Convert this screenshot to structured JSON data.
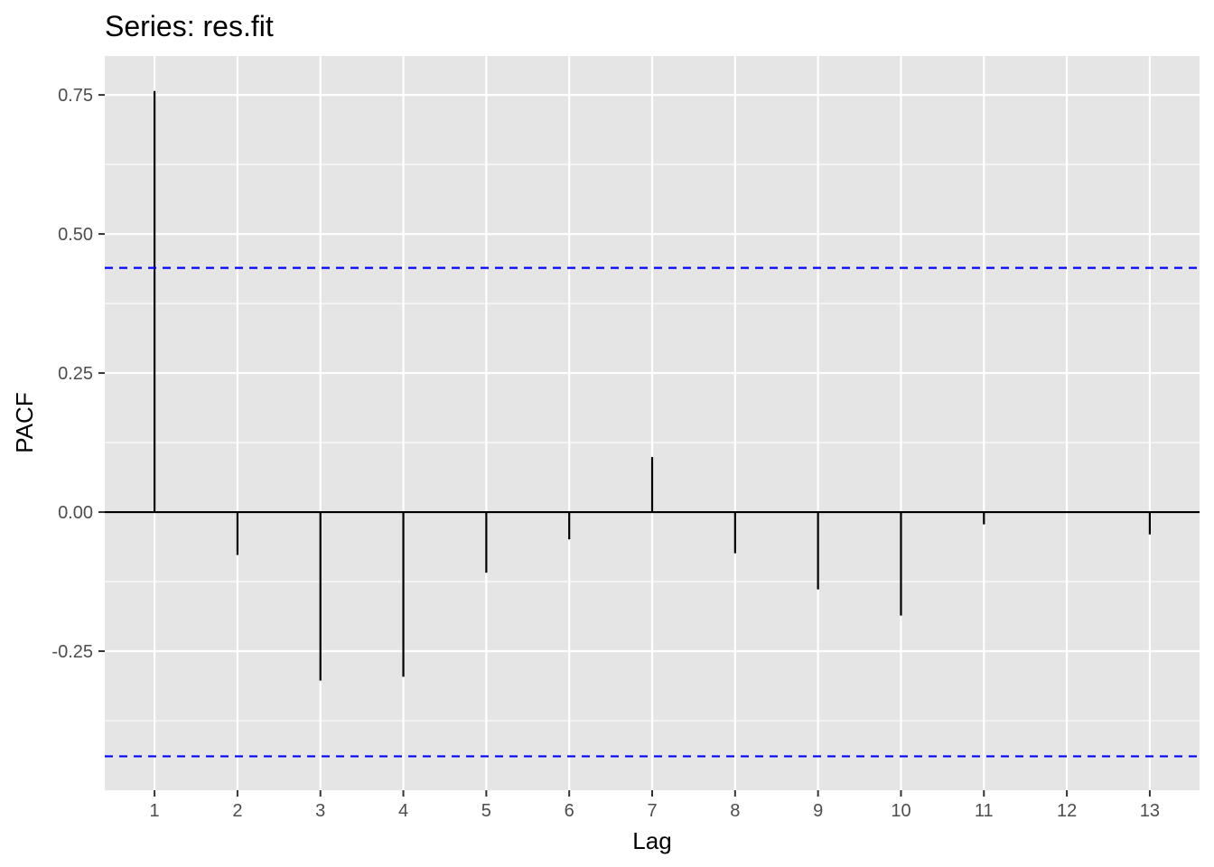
{
  "chart_data": {
    "type": "bar",
    "title": "Series: res.fit",
    "xlabel": "Lag",
    "ylabel": "PACF",
    "x": [
      1,
      2,
      3,
      4,
      5,
      6,
      7,
      8,
      9,
      10,
      11,
      12,
      13
    ],
    "values": [
      0.757,
      -0.077,
      -0.303,
      -0.296,
      -0.109,
      -0.049,
      0.099,
      -0.074,
      -0.139,
      -0.186,
      -0.022,
      0.0,
      -0.04
    ],
    "xlim": [
      0.4,
      13.6
    ],
    "ylim": [
      -0.5,
      0.82
    ],
    "y_ticks": [
      "0.75",
      "0.50",
      "0.25",
      "0.00",
      "-0.25"
    ],
    "x_ticks": [
      "1",
      "2",
      "3",
      "4",
      "5",
      "6",
      "7",
      "8",
      "9",
      "10",
      "11",
      "12",
      "13"
    ],
    "confidence_bounds": [
      0.439,
      -0.439
    ],
    "grid": true,
    "colors": {
      "panel": "#e5e5e5",
      "grid": "#ffffff",
      "bar": "#000000",
      "confidence": "#0000ff",
      "tick_label": "#4d4d4d"
    }
  }
}
